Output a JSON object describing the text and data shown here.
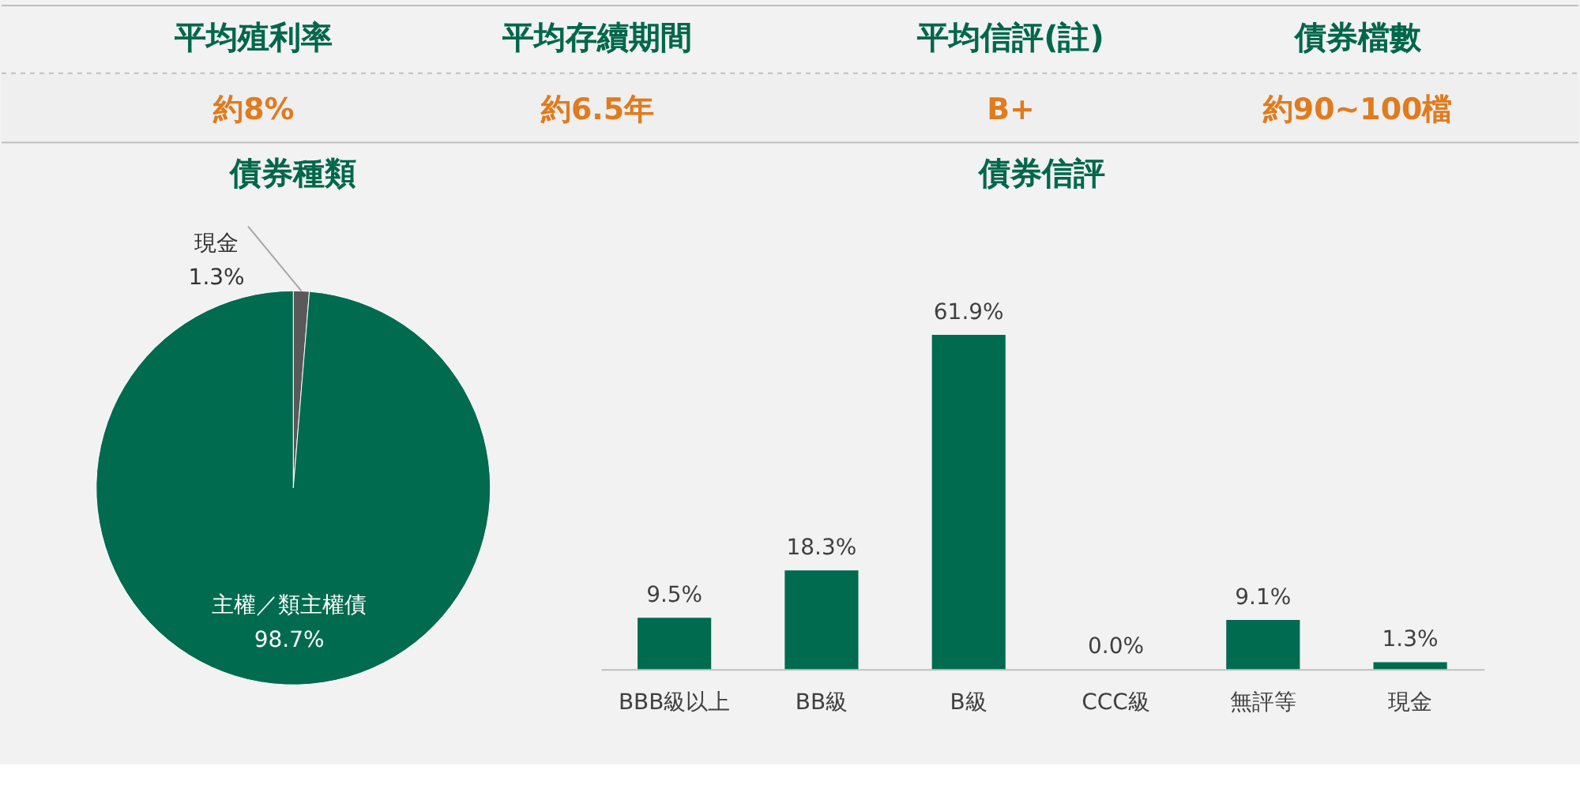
{
  "chart_data": [
    {
      "type": "other",
      "annotations": [
        "平均殖利率",
        "平均存續期間",
        "平均信評(註)",
        "債券檔數",
        "約8%",
        "約6.5年",
        "B+",
        "約90~100檔"
      ]
    },
    {
      "type": "pie",
      "title": "債券種類",
      "categories": [
        "現金",
        "主權／類主權債"
      ],
      "values": [
        1.3,
        98.7
      ],
      "colors": [
        "#595959",
        "#006b4f"
      ],
      "value_labels": [
        "1.3%",
        "98.7%"
      ]
    },
    {
      "type": "bar",
      "title": "債券信評",
      "categories": [
        "BBB級以上",
        "BB級",
        "B級",
        "CCC級",
        "無評等",
        "現金"
      ],
      "values": [
        9.5,
        18.3,
        61.9,
        0.0,
        9.1,
        1.3
      ],
      "color": "#006b4f",
      "value_labels": [
        "9.5%",
        "18.3%",
        "61.9%",
        "0.0%",
        "9.1%",
        "1.3%"
      ],
      "grid": false
    }
  ]
}
